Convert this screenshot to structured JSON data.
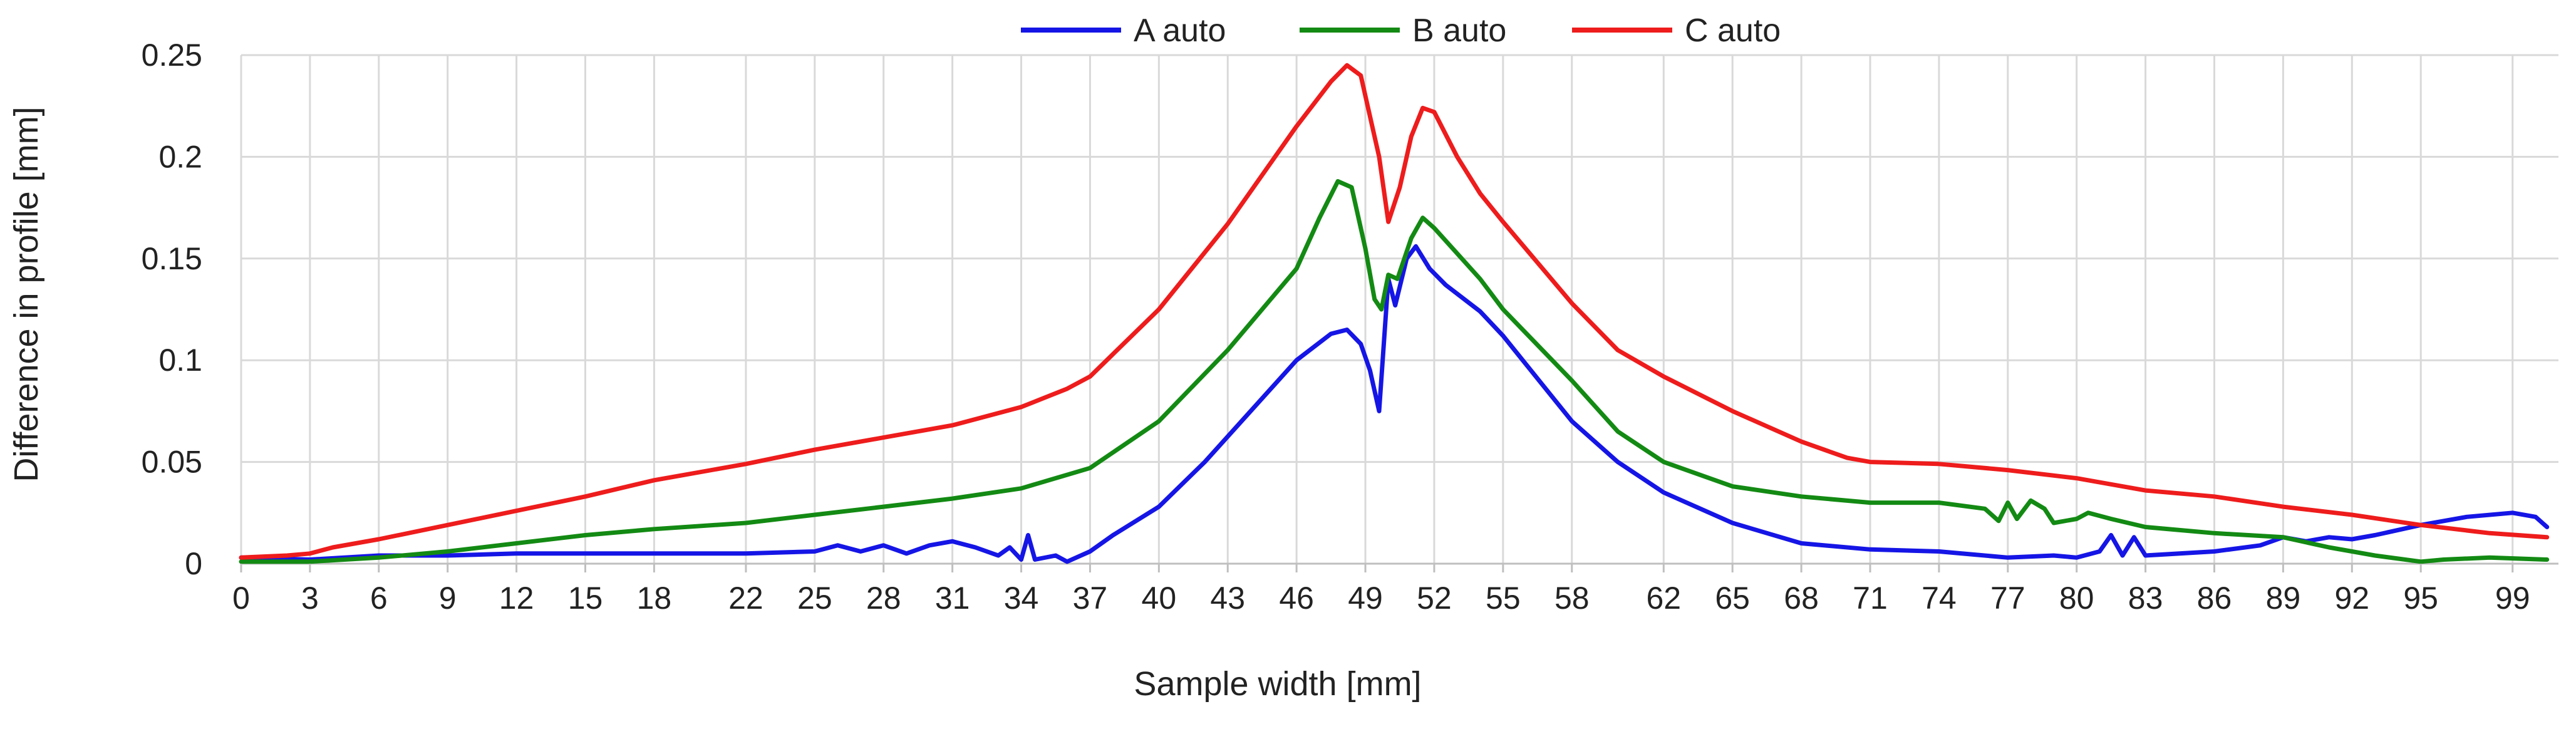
{
  "chart_data": {
    "type": "line",
    "title": "",
    "xlabel": "Sample width [mm]",
    "ylabel": "Difference in profile [mm]",
    "xlim": [
      0,
      101
    ],
    "ylim": [
      0,
      0.25
    ],
    "grid": true,
    "legend_position": "top-center",
    "x_ticks": [
      0,
      3,
      6,
      9,
      12,
      15,
      18,
      22,
      25,
      28,
      31,
      34,
      37,
      40,
      43,
      46,
      49,
      52,
      55,
      58,
      62,
      65,
      68,
      71,
      74,
      77,
      80,
      83,
      86,
      89,
      92,
      95,
      99
    ],
    "x_tick_labels": [
      "0",
      "3",
      "6",
      "9",
      "12",
      "15",
      "18",
      "22",
      "25",
      "28",
      "31",
      "34",
      "37",
      "40",
      "43",
      "46",
      "49",
      "52",
      "55",
      "58",
      "62",
      "65",
      "68",
      "71",
      "74",
      "77",
      "80",
      "83",
      "86",
      "89",
      "92",
      "95",
      "99"
    ],
    "y_ticks": [
      0,
      0.05,
      0.1,
      0.15,
      0.2,
      0.25
    ],
    "y_tick_labels": [
      "0",
      "0.05",
      "0.1",
      "0.15",
      "0.2",
      "0.25"
    ],
    "series": [
      {
        "name": "A auto",
        "color": "#1515e6",
        "points": [
          [
            0,
            0.003
          ],
          [
            3,
            0.002
          ],
          [
            6,
            0.004
          ],
          [
            9,
            0.004
          ],
          [
            12,
            0.005
          ],
          [
            15,
            0.005
          ],
          [
            18,
            0.005
          ],
          [
            22,
            0.005
          ],
          [
            25,
            0.006
          ],
          [
            26,
            0.009
          ],
          [
            27,
            0.006
          ],
          [
            28,
            0.009
          ],
          [
            29,
            0.005
          ],
          [
            30,
            0.009
          ],
          [
            31,
            0.011
          ],
          [
            32,
            0.008
          ],
          [
            33,
            0.004
          ],
          [
            33.5,
            0.008
          ],
          [
            34,
            0.002
          ],
          [
            34.3,
            0.014
          ],
          [
            34.6,
            0.002
          ],
          [
            35.5,
            0.004
          ],
          [
            36,
            0.001
          ],
          [
            37,
            0.006
          ],
          [
            38,
            0.014
          ],
          [
            40,
            0.028
          ],
          [
            42,
            0.05
          ],
          [
            44,
            0.075
          ],
          [
            46,
            0.1
          ],
          [
            47.5,
            0.113
          ],
          [
            48.2,
            0.115
          ],
          [
            48.8,
            0.108
          ],
          [
            49.2,
            0.095
          ],
          [
            49.6,
            0.075
          ],
          [
            50,
            0.14
          ],
          [
            50.3,
            0.127
          ],
          [
            50.8,
            0.15
          ],
          [
            51.2,
            0.156
          ],
          [
            51.8,
            0.145
          ],
          [
            52.5,
            0.137
          ],
          [
            54,
            0.124
          ],
          [
            55,
            0.112
          ],
          [
            56,
            0.098
          ],
          [
            58,
            0.07
          ],
          [
            60,
            0.05
          ],
          [
            62,
            0.035
          ],
          [
            65,
            0.02
          ],
          [
            68,
            0.01
          ],
          [
            71,
            0.007
          ],
          [
            74,
            0.006
          ],
          [
            77,
            0.003
          ],
          [
            79,
            0.004
          ],
          [
            80,
            0.003
          ],
          [
            81,
            0.006
          ],
          [
            81.5,
            0.014
          ],
          [
            82,
            0.004
          ],
          [
            82.5,
            0.013
          ],
          [
            83,
            0.004
          ],
          [
            86,
            0.006
          ],
          [
            88,
            0.009
          ],
          [
            89,
            0.013
          ],
          [
            90,
            0.011
          ],
          [
            91,
            0.013
          ],
          [
            92,
            0.012
          ],
          [
            93,
            0.014
          ],
          [
            95,
            0.019
          ],
          [
            97,
            0.023
          ],
          [
            99,
            0.025
          ],
          [
            100,
            0.023
          ],
          [
            100.5,
            0.018
          ]
        ]
      },
      {
        "name": "B auto",
        "color": "#138a13",
        "points": [
          [
            0,
            0.001
          ],
          [
            3,
            0.001
          ],
          [
            6,
            0.003
          ],
          [
            9,
            0.006
          ],
          [
            12,
            0.01
          ],
          [
            15,
            0.014
          ],
          [
            18,
            0.017
          ],
          [
            22,
            0.02
          ],
          [
            25,
            0.024
          ],
          [
            28,
            0.028
          ],
          [
            31,
            0.032
          ],
          [
            34,
            0.037
          ],
          [
            37,
            0.047
          ],
          [
            40,
            0.07
          ],
          [
            43,
            0.105
          ],
          [
            46,
            0.145
          ],
          [
            47,
            0.17
          ],
          [
            47.8,
            0.188
          ],
          [
            48.4,
            0.185
          ],
          [
            49,
            0.155
          ],
          [
            49.4,
            0.13
          ],
          [
            49.7,
            0.125
          ],
          [
            50,
            0.142
          ],
          [
            50.4,
            0.14
          ],
          [
            51,
            0.16
          ],
          [
            51.5,
            0.17
          ],
          [
            52,
            0.165
          ],
          [
            54,
            0.14
          ],
          [
            55,
            0.125
          ],
          [
            58,
            0.09
          ],
          [
            60,
            0.065
          ],
          [
            62,
            0.05
          ],
          [
            65,
            0.038
          ],
          [
            68,
            0.033
          ],
          [
            71,
            0.03
          ],
          [
            74,
            0.03
          ],
          [
            76,
            0.027
          ],
          [
            76.6,
            0.021
          ],
          [
            77,
            0.03
          ],
          [
            77.4,
            0.022
          ],
          [
            78,
            0.031
          ],
          [
            78.6,
            0.027
          ],
          [
            79,
            0.02
          ],
          [
            80,
            0.022
          ],
          [
            80.5,
            0.025
          ],
          [
            81.5,
            0.022
          ],
          [
            83,
            0.018
          ],
          [
            86,
            0.015
          ],
          [
            89,
            0.013
          ],
          [
            91,
            0.008
          ],
          [
            93,
            0.004
          ],
          [
            95,
            0.001
          ],
          [
            96,
            0.002
          ],
          [
            98,
            0.003
          ],
          [
            100.5,
            0.002
          ]
        ]
      },
      {
        "name": "C auto",
        "color": "#ee1c1c",
        "points": [
          [
            0,
            0.003
          ],
          [
            2,
            0.004
          ],
          [
            3,
            0.005
          ],
          [
            4,
            0.008
          ],
          [
            6,
            0.012
          ],
          [
            9,
            0.019
          ],
          [
            12,
            0.026
          ],
          [
            15,
            0.033
          ],
          [
            18,
            0.041
          ],
          [
            22,
            0.049
          ],
          [
            25,
            0.056
          ],
          [
            28,
            0.062
          ],
          [
            31,
            0.068
          ],
          [
            34,
            0.077
          ],
          [
            36,
            0.086
          ],
          [
            37,
            0.092
          ],
          [
            40,
            0.125
          ],
          [
            43,
            0.167
          ],
          [
            46,
            0.215
          ],
          [
            47.5,
            0.237
          ],
          [
            48.2,
            0.245
          ],
          [
            48.8,
            0.24
          ],
          [
            49.3,
            0.215
          ],
          [
            49.6,
            0.2
          ],
          [
            50,
            0.168
          ],
          [
            50.5,
            0.185
          ],
          [
            51,
            0.21
          ],
          [
            51.5,
            0.224
          ],
          [
            52,
            0.222
          ],
          [
            53,
            0.2
          ],
          [
            54,
            0.182
          ],
          [
            55,
            0.168
          ],
          [
            58,
            0.128
          ],
          [
            60,
            0.105
          ],
          [
            62,
            0.092
          ],
          [
            65,
            0.075
          ],
          [
            68,
            0.06
          ],
          [
            70,
            0.052
          ],
          [
            71,
            0.05
          ],
          [
            74,
            0.049
          ],
          [
            77,
            0.046
          ],
          [
            80,
            0.042
          ],
          [
            83,
            0.036
          ],
          [
            86,
            0.033
          ],
          [
            89,
            0.028
          ],
          [
            92,
            0.024
          ],
          [
            95,
            0.019
          ],
          [
            98,
            0.015
          ],
          [
            100.5,
            0.013
          ]
        ]
      }
    ]
  }
}
